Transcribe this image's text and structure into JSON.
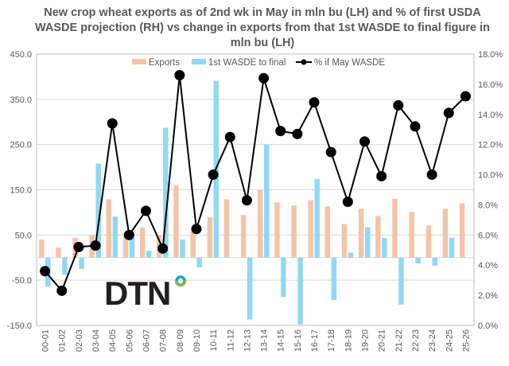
{
  "chart_data": {
    "type": "bar",
    "title": "New crop wheat exports as of 2nd wk in May in mln bu (LH)  and % of first USDA WASDE projection (RH) vs change in exports from that 1st WASDE to final figure in mln bu (LH)",
    "categories": [
      "00-01",
      "01-02",
      "02-03",
      "03-04",
      "04-05",
      "05-06",
      "06-07",
      "07-08",
      "08-09",
      "09-10",
      "10-11",
      "11-12",
      "12-13",
      "13-14",
      "14-15",
      "15-16",
      "16-17",
      "17-18",
      "18-19",
      "19-20",
      "20-21",
      "21-22",
      "22-23",
      "23-24",
      "24-25",
      "25-26"
    ],
    "series": [
      {
        "name": "Exports",
        "type": "bar",
        "axis": "left",
        "color": "#f4c4a8",
        "values": [
          40,
          22,
          44,
          49,
          129,
          53,
          67,
          49,
          160,
          58,
          89,
          129,
          94,
          149,
          122,
          115,
          127,
          113,
          74,
          108,
          92,
          130,
          101,
          71,
          108,
          120
        ]
      },
      {
        "name": "1st WASDE to final",
        "type": "bar",
        "axis": "left",
        "color": "#92d8f5",
        "values": [
          -64,
          -38,
          -25,
          208,
          91,
          44,
          15,
          287,
          40,
          -22,
          391,
          0,
          -137,
          250,
          -87,
          -148,
          174,
          -94,
          11,
          67,
          43,
          -104,
          -13,
          -18,
          44,
          null
        ]
      },
      {
        "name": "% if May WASDE",
        "type": "line",
        "axis": "right",
        "color": "#000000",
        "values": [
          3.6,
          2.3,
          5.2,
          5.3,
          13.4,
          6.0,
          7.6,
          5.1,
          16.6,
          6.4,
          10.0,
          12.5,
          8.3,
          16.4,
          12.9,
          12.7,
          14.8,
          11.5,
          8.2,
          12.2,
          9.9,
          14.6,
          13.2,
          10.0,
          14.1,
          15.2
        ]
      }
    ],
    "ylim": [
      -150,
      450
    ],
    "yticks": [
      "-150.0",
      "-50.0",
      "50.0",
      "150.0",
      "250.0",
      "350.0",
      "450.0"
    ],
    "y2lim": [
      0,
      18
    ],
    "y2ticks": [
      "0.0%",
      "2.0%",
      "4.0%",
      "6.0%",
      "8.0%",
      "10.0%",
      "12.0%",
      "14.0%",
      "16.0%",
      "18.0%"
    ],
    "grid": true,
    "legend": "top"
  },
  "logo": {
    "text": "DTN"
  }
}
